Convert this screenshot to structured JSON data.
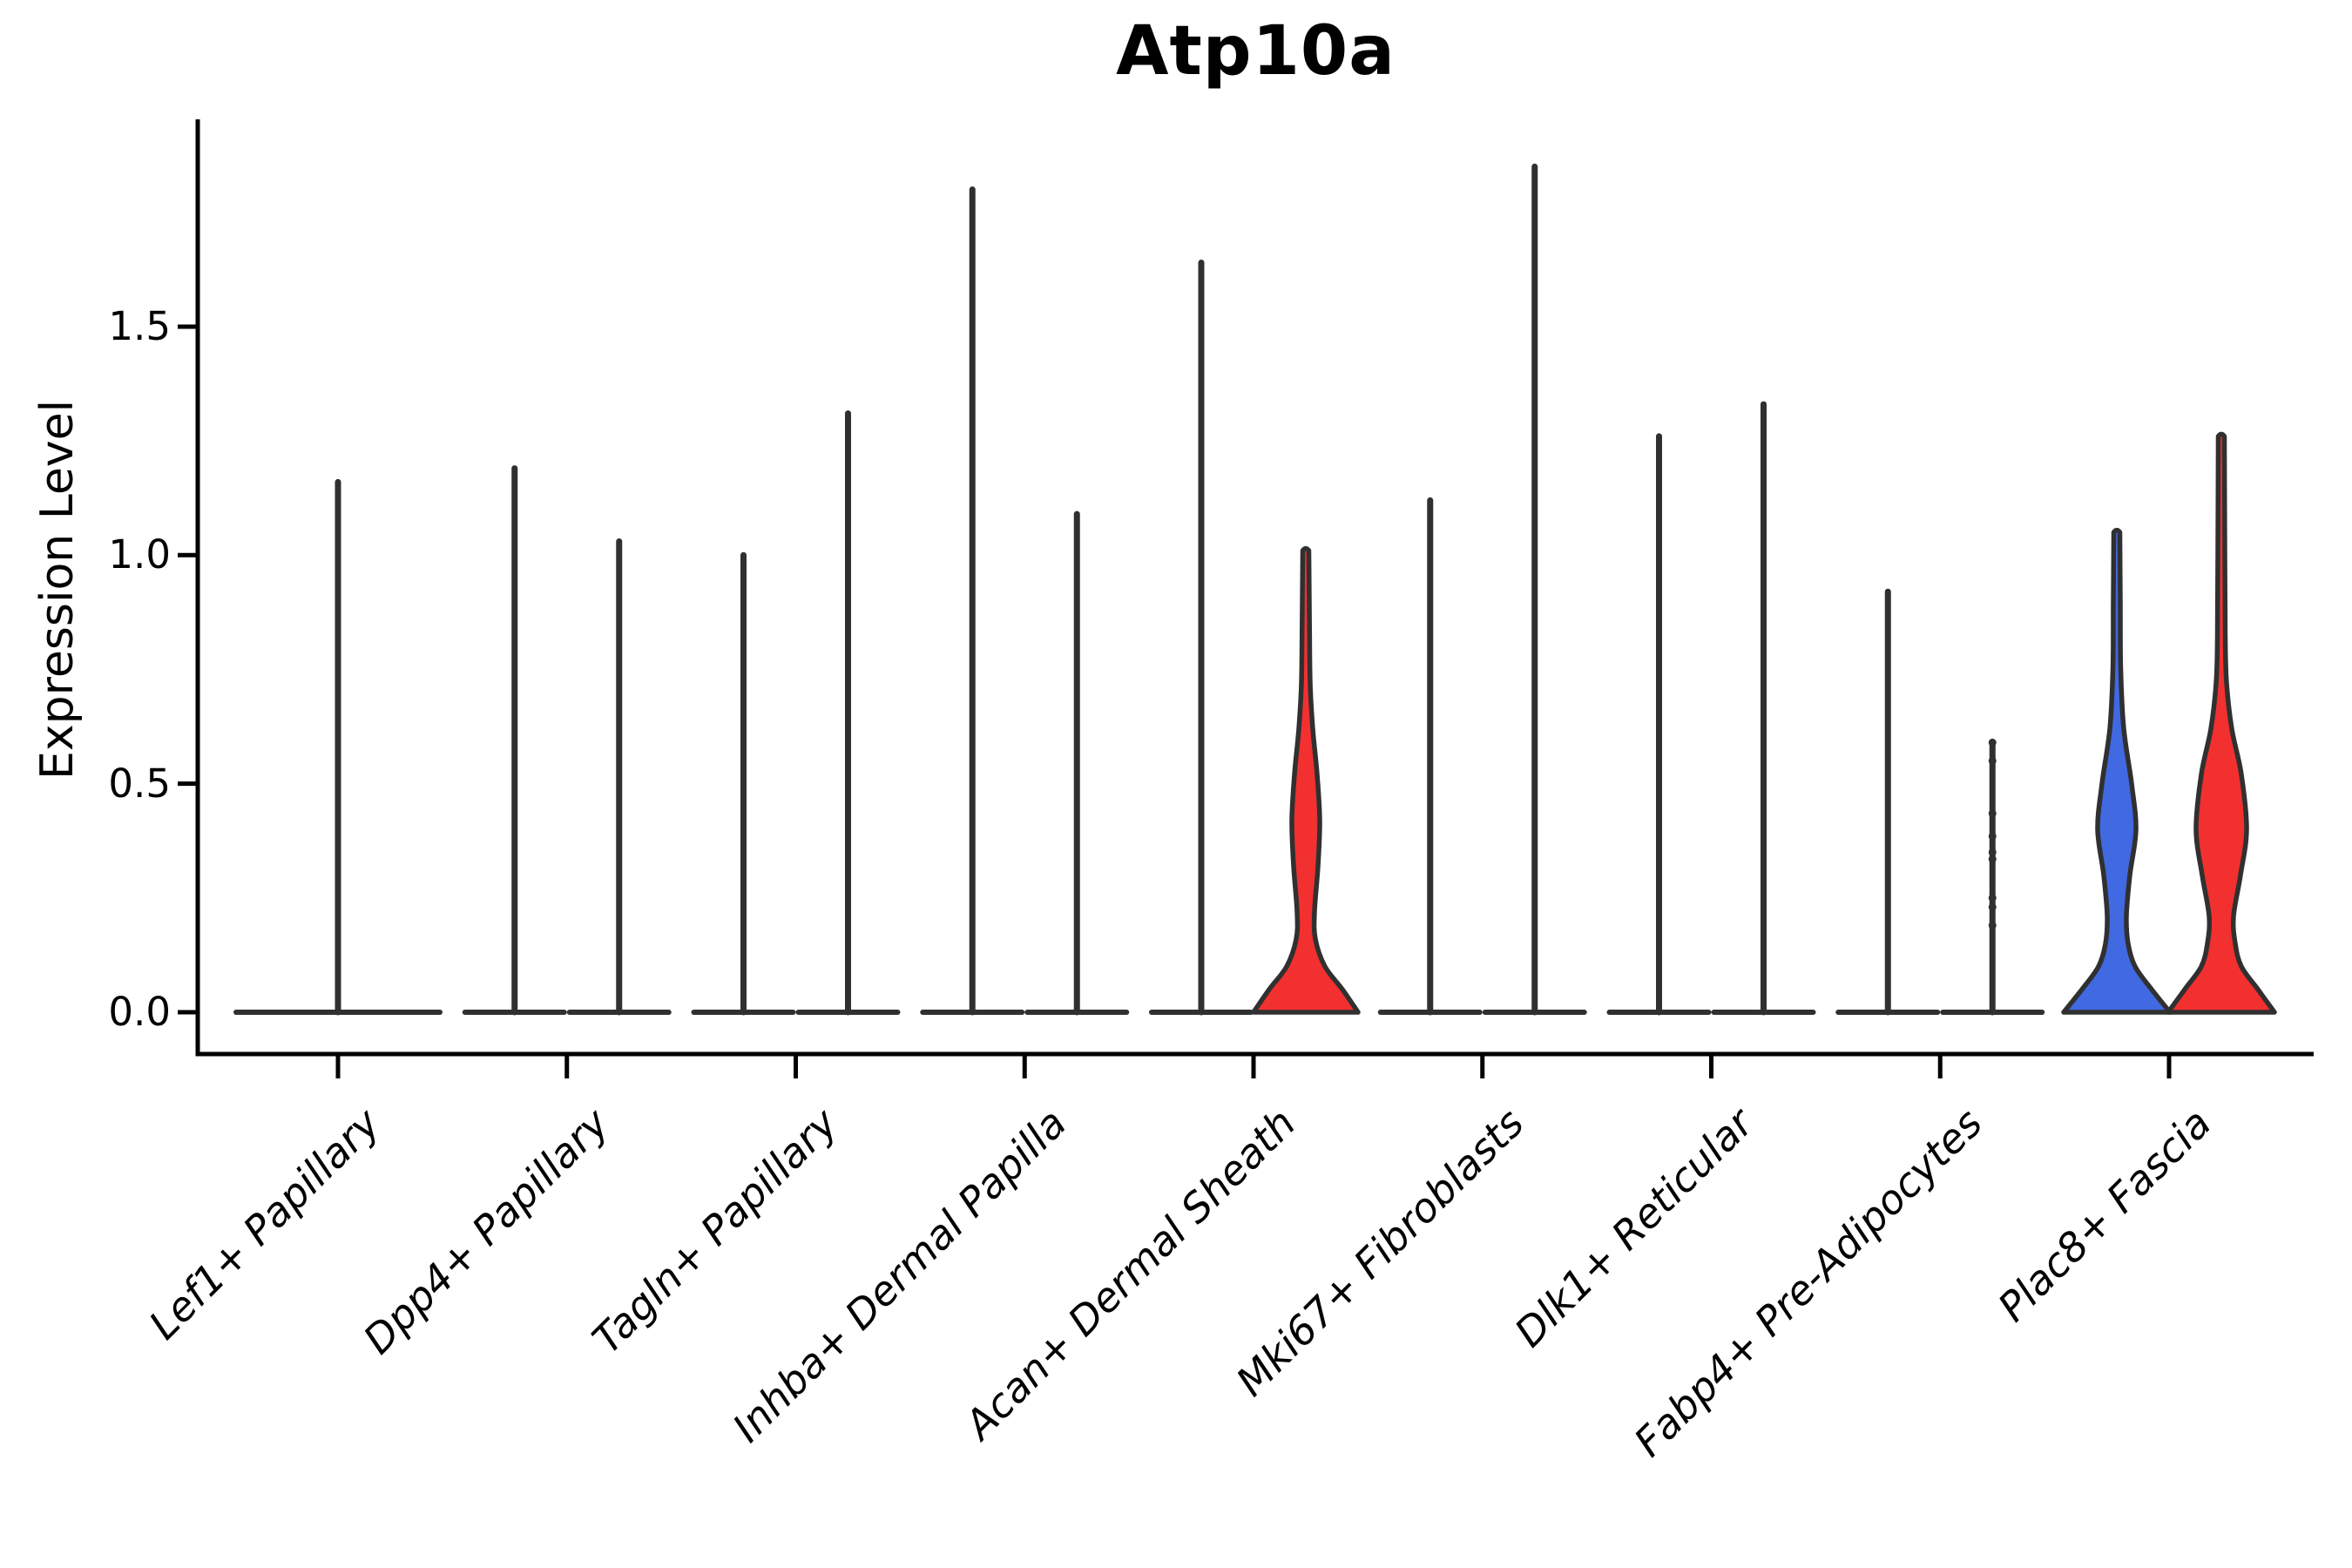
{
  "chart_data": {
    "type": "violin",
    "title": "Atp10a",
    "ylabel": "Expression Level",
    "ylim": [
      0,
      1.95
    ],
    "yticks": [
      0.0,
      0.5,
      1.0,
      1.5
    ],
    "y_tick_labels": [
      "0.0",
      "0.5",
      "1.0",
      "1.5"
    ],
    "grid": "off",
    "legend": "none",
    "categories": [
      "Lef1+ Papillary",
      "Dpp4+ Papillary",
      "Tagln+ Papillary",
      "Inhba+ Dermal Papilla",
      "Acan+ Dermal Sheath",
      "Mki67+ Fibroblasts",
      "Dlk1+ Reticular",
      "Fabp4+ Pre-Adipocytes",
      "Plac8+ Fascia"
    ],
    "split_colors": {
      "blue": "#4169E1",
      "red": "#F23030",
      "outline": "#303030"
    },
    "groups": [
      {
        "violins": [
          {
            "kind": "spike",
            "slot": "full",
            "max": 1.16
          }
        ]
      },
      {
        "violins": [
          {
            "kind": "spike",
            "slot": "left",
            "max": 1.19
          },
          {
            "kind": "spike",
            "slot": "right",
            "max": 1.03
          }
        ]
      },
      {
        "violins": [
          {
            "kind": "spike",
            "slot": "left",
            "max": 1.0
          },
          {
            "kind": "spike",
            "slot": "right",
            "max": 1.31
          }
        ]
      },
      {
        "violins": [
          {
            "kind": "spike",
            "slot": "left",
            "max": 1.8
          },
          {
            "kind": "spike",
            "slot": "right",
            "max": 1.09
          }
        ]
      },
      {
        "violins": [
          {
            "kind": "spike",
            "slot": "left",
            "max": 1.64
          },
          {
            "kind": "violin",
            "slot": "right",
            "max": 1.01,
            "color": "red",
            "profile": [
              [
                0,
                60
              ],
              [
                0.05,
                42
              ],
              [
                0.1,
                22
              ],
              [
                0.16,
                11
              ],
              [
                0.22,
                10
              ],
              [
                0.32,
                14
              ],
              [
                0.42,
                16
              ],
              [
                0.52,
                13
              ],
              [
                0.62,
                8
              ],
              [
                0.72,
                5
              ],
              [
                0.85,
                4.2
              ],
              [
                1.01,
                3.5
              ]
            ]
          }
        ]
      },
      {
        "violins": [
          {
            "kind": "spike",
            "slot": "left",
            "max": 1.12
          },
          {
            "kind": "spike",
            "slot": "right",
            "max": 1.85
          }
        ]
      },
      {
        "violins": [
          {
            "kind": "spike",
            "slot": "left",
            "max": 1.26
          },
          {
            "kind": "spike",
            "slot": "right",
            "max": 1.33
          }
        ]
      },
      {
        "violins": [
          {
            "kind": "spike",
            "slot": "left",
            "max": 0.92
          },
          {
            "kind": "spike",
            "slot": "right",
            "max": 0.59,
            "dots": [
              0.59,
              0.55,
              0.435,
              0.385,
              0.35,
              0.335,
              0.25,
              0.23,
              0.19
            ]
          }
        ]
      },
      {
        "violins": [
          {
            "kind": "violin",
            "slot": "left",
            "max": 1.05,
            "color": "blue",
            "profile": [
              [
                0,
                61
              ],
              [
                0.05,
                40
              ],
              [
                0.1,
                21
              ],
              [
                0.15,
                13
              ],
              [
                0.21,
                11
              ],
              [
                0.3,
                15
              ],
              [
                0.4,
                22
              ],
              [
                0.5,
                17
              ],
              [
                0.62,
                8
              ],
              [
                0.75,
                4.5
              ],
              [
                0.9,
                4
              ],
              [
                1.05,
                3.5
              ]
            ]
          },
          {
            "kind": "violin",
            "slot": "right",
            "max": 1.26,
            "color": "red",
            "profile": [
              [
                0,
                61
              ],
              [
                0.05,
                42
              ],
              [
                0.1,
                23
              ],
              [
                0.15,
                16
              ],
              [
                0.21,
                14
              ],
              [
                0.3,
                22
              ],
              [
                0.4,
                29
              ],
              [
                0.52,
                23
              ],
              [
                0.62,
                12
              ],
              [
                0.72,
                6
              ],
              [
                0.82,
                4.5
              ],
              [
                1.0,
                4
              ],
              [
                1.26,
                3.5
              ]
            ]
          }
        ]
      }
    ]
  }
}
